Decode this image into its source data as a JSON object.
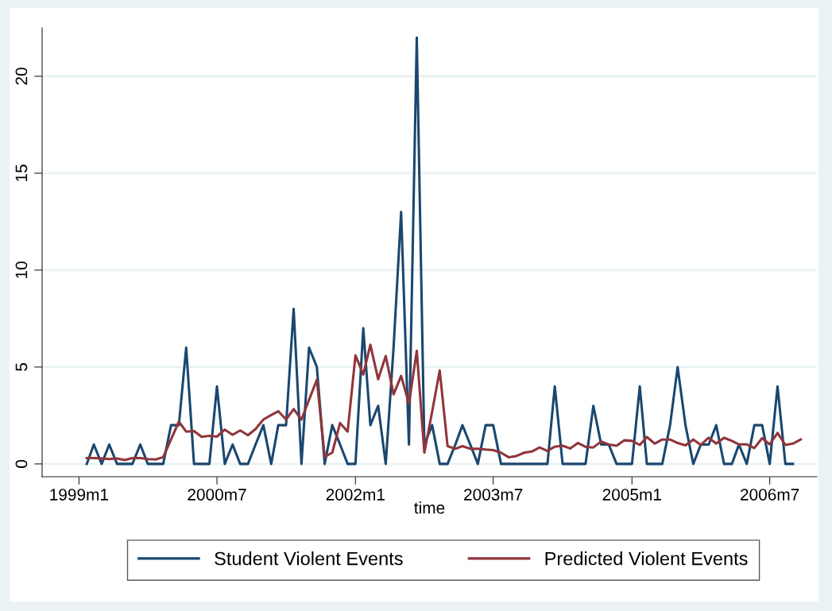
{
  "chart_data": {
    "type": "line",
    "xlabel": "time",
    "x": [
      "1999-02",
      "1999-03",
      "1999-04",
      "1999-05",
      "1999-06",
      "1999-07",
      "1999-08",
      "1999-09",
      "1999-10",
      "1999-11",
      "1999-12",
      "2000-01",
      "2000-02",
      "2000-03",
      "2000-04",
      "2000-05",
      "2000-06",
      "2000-07",
      "2000-08",
      "2000-09",
      "2000-10",
      "2000-11",
      "2000-12",
      "2001-01",
      "2001-02",
      "2001-03",
      "2001-04",
      "2001-05",
      "2001-06",
      "2001-07",
      "2001-08",
      "2001-09",
      "2001-10",
      "2001-11",
      "2001-12",
      "2002-01",
      "2002-02",
      "2002-03",
      "2002-04",
      "2002-05",
      "2002-06",
      "2002-07",
      "2002-08",
      "2002-09",
      "2002-10",
      "2002-11",
      "2002-12",
      "2003-01",
      "2003-02",
      "2003-03",
      "2003-04",
      "2003-05",
      "2003-06",
      "2003-07",
      "2003-08",
      "2003-09",
      "2003-10",
      "2003-11",
      "2003-12",
      "2004-01",
      "2004-02",
      "2004-03",
      "2004-04",
      "2004-05",
      "2004-06",
      "2004-07",
      "2004-08",
      "2004-09",
      "2004-10",
      "2004-11",
      "2004-12",
      "2005-01",
      "2005-02",
      "2005-03",
      "2005-04",
      "2005-05",
      "2005-06",
      "2005-07",
      "2005-08",
      "2005-09",
      "2005-10",
      "2005-11",
      "2005-12",
      "2006-01",
      "2006-02",
      "2006-03",
      "2006-04",
      "2006-05",
      "2006-06",
      "2006-07",
      "2006-08",
      "2006-09",
      "2006-10",
      "2006-11"
    ],
    "series": [
      {
        "name": "Student Violent Events",
        "color": "#1a476f",
        "values": [
          0,
          1,
          0,
          1,
          0,
          0,
          0,
          1,
          0,
          0,
          0,
          2,
          2,
          6,
          0,
          0,
          0,
          4,
          0,
          1,
          0,
          0,
          1,
          2,
          0,
          2,
          2,
          8,
          0,
          6,
          5,
          0,
          2,
          1,
          0,
          0,
          7,
          2,
          3,
          0,
          6,
          13,
          1,
          22,
          1,
          2,
          0,
          0,
          1,
          2,
          1,
          0,
          2,
          2,
          0,
          0,
          0,
          0,
          0,
          0,
          0,
          4,
          0,
          0,
          0,
          0,
          3,
          1,
          1,
          0,
          0,
          0,
          4,
          0,
          0,
          0,
          2,
          5,
          2,
          0,
          1,
          1,
          2,
          0,
          0,
          1,
          0,
          2,
          2,
          0,
          4,
          0,
          0,
          null
        ]
      },
      {
        "name": "Predicted Violent Events",
        "color": "#90353b",
        "values": [
          0.3,
          0.3,
          0.28,
          0.25,
          0.28,
          0.2,
          0.3,
          0.3,
          0.25,
          0.23,
          0.35,
          1.26,
          2.18,
          1.67,
          1.7,
          1.4,
          1.45,
          1.41,
          1.77,
          1.5,
          1.73,
          1.48,
          1.8,
          2.29,
          2.52,
          2.72,
          2.29,
          2.83,
          2.29,
          3.31,
          4.34,
          0.37,
          0.58,
          2.11,
          1.67,
          5.6,
          4.61,
          6.15,
          4.37,
          5.57,
          3.59,
          4.54,
          3.11,
          5.84,
          0.58,
          2.7,
          4.82,
          0.92,
          0.78,
          0.92,
          0.78,
          0.78,
          0.74,
          0.71,
          0.58,
          0.34,
          0.41,
          0.58,
          0.64,
          0.85,
          0.67,
          0.89,
          0.94,
          0.8,
          1.08,
          0.88,
          0.85,
          1.16,
          1.0,
          0.94,
          1.22,
          1.19,
          0.98,
          1.39,
          1.05,
          1.26,
          1.26,
          1.08,
          0.96,
          1.26,
          0.98,
          1.35,
          1.05,
          1.35,
          1.19,
          1.01,
          1.01,
          0.82,
          1.33,
          1.01,
          1.6,
          0.98,
          1.05,
          1.26
        ]
      }
    ],
    "xlim": [
      "1998-08-08",
      "2007-01-04"
    ],
    "xticks": [
      {
        "value": "1999-01",
        "label": "1999m1"
      },
      {
        "value": "2000-07",
        "label": "2000m7"
      },
      {
        "value": "2002-01",
        "label": "2002m1"
      },
      {
        "value": "2003-07",
        "label": "2003m7"
      },
      {
        "value": "2005-01",
        "label": "2005m1"
      },
      {
        "value": "2006-07",
        "label": "2006m7"
      }
    ],
    "ylim": [
      -0.66,
      22.5
    ],
    "yticks": [
      0,
      5,
      10,
      15,
      20
    ],
    "grid": "y",
    "legend": "bottom",
    "line_style": "solid",
    "marker": "none"
  }
}
